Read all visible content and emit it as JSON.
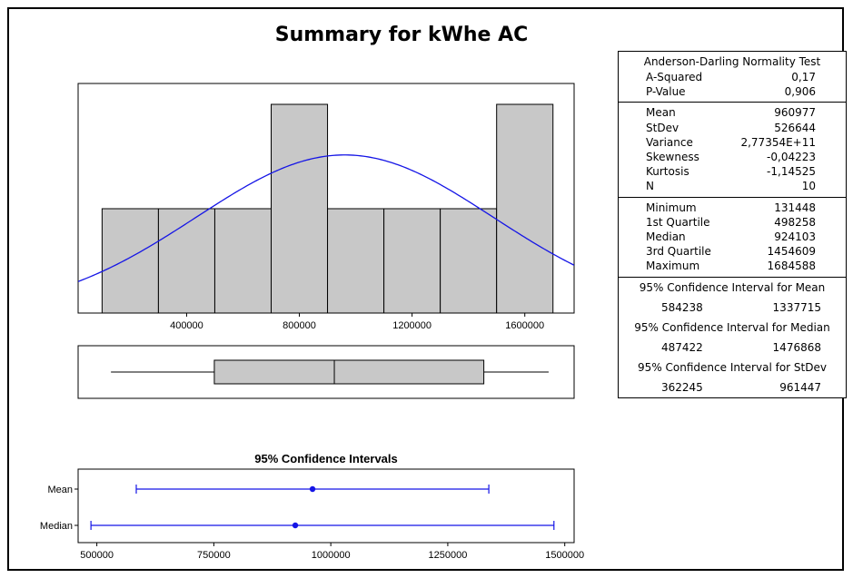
{
  "title": "Summary for kWhe AC",
  "chart_data": [
    {
      "type": "bar",
      "subtype": "histogram_with_normal_fit",
      "bins": [
        {
          "from": 100000,
          "to": 300000,
          "count": 1
        },
        {
          "from": 300000,
          "to": 500000,
          "count": 1
        },
        {
          "from": 500000,
          "to": 700000,
          "count": 1
        },
        {
          "from": 700000,
          "to": 900000,
          "count": 2
        },
        {
          "from": 900000,
          "to": 1100000,
          "count": 1
        },
        {
          "from": 1100000,
          "to": 1300000,
          "count": 1
        },
        {
          "from": 1300000,
          "to": 1500000,
          "count": 1
        },
        {
          "from": 1500000,
          "to": 1700000,
          "count": 2
        }
      ],
      "normal_fit": {
        "mean": 960977,
        "stdev": 526644
      },
      "xlim": [
        15000,
        1775000
      ],
      "ylim": [
        0,
        2.2
      ],
      "x_ticks": [
        400000,
        800000,
        1200000,
        1600000
      ],
      "x_tick_labels": [
        "400000",
        "800000",
        "1200000",
        "1600000"
      ],
      "bar_color": "#c8c8c8",
      "curve_color": "#1515e6",
      "grid": false
    },
    {
      "type": "boxplot",
      "min": 131448,
      "q1": 498258,
      "median": 924103,
      "q3": 1454609,
      "max": 1684588,
      "xlim": [
        15000,
        1775000
      ],
      "box_color": "#c8c8c8"
    },
    {
      "type": "interval",
      "title": "95% Confidence Intervals",
      "rows": [
        {
          "label": "Mean",
          "estimate": 960977,
          "lower": 584238,
          "upper": 1337715
        },
        {
          "label": "Median",
          "estimate": 924103,
          "lower": 487422,
          "upper": 1476868
        }
      ],
      "xlim": [
        460000,
        1520000
      ],
      "x_ticks": [
        500000,
        750000,
        1000000,
        1250000,
        1500000
      ],
      "x_tick_labels": [
        "500000",
        "750000",
        "1000000",
        "1250000",
        "1500000"
      ],
      "color": "#1515e6"
    }
  ],
  "stats": {
    "ad_title": "Anderson-Darling Normality Test",
    "a_squared_label": "A-Squared",
    "a_squared": "0,17",
    "p_value_label": "P-Value",
    "p_value": "0,906",
    "mean_label": "Mean",
    "mean": "960977",
    "stdev_label": "StDev",
    "stdev": "526644",
    "variance_label": "Variance",
    "variance": "2,77354E+11",
    "skewness_label": "Skewness",
    "skewness": "-0,04223",
    "kurtosis_label": "Kurtosis",
    "kurtosis": "-1,14525",
    "n_label": "N",
    "n": "10",
    "minimum_label": "Minimum",
    "minimum": "131448",
    "q1_label": "1st Quartile",
    "q1": "498258",
    "median_label": "Median",
    "median": "924103",
    "q3_label": "3rd Quartile",
    "q3": "1454609",
    "maximum_label": "Maximum",
    "maximum": "1684588",
    "ci_mean_title": "95% Confidence Interval for Mean",
    "ci_mean_low": "584238",
    "ci_mean_high": "1337715",
    "ci_median_title": "95% Confidence Interval for Median",
    "ci_median_low": "487422",
    "ci_median_high": "1476868",
    "ci_stdev_title": "95% Confidence Interval for StDev",
    "ci_stdev_low": "362245",
    "ci_stdev_high": "961447"
  }
}
